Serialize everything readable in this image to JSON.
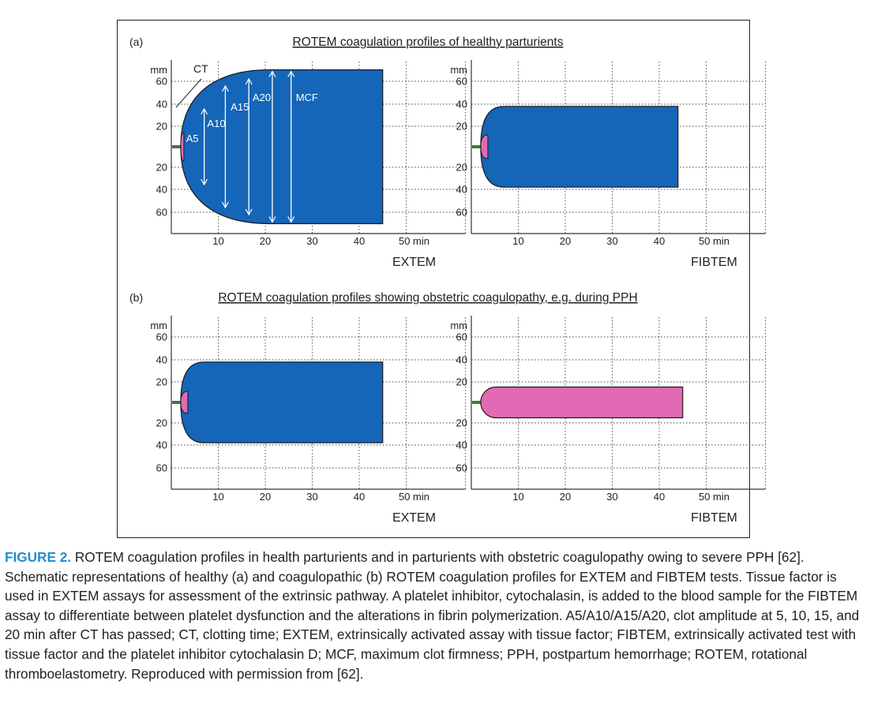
{
  "figure": {
    "panels": [
      {
        "label": "(a)",
        "title": "ROTEM coagulation profiles of healthy parturients",
        "charts": [
          {
            "assay": "EXTEM",
            "y_unit": "mm",
            "x_unit": "min",
            "y_ticks_upper": [
              "60",
              "40",
              "20"
            ],
            "y_ticks_lower": [
              "20",
              "40",
              "60"
            ],
            "x_ticks": [
              "10",
              "20",
              "30",
              "40",
              "50"
            ],
            "annotations": {
              "ct": "CT",
              "a5": "A5",
              "a10": "A10",
              "a15": "A15",
              "a20": "A20",
              "mcf": "MCF"
            }
          },
          {
            "assay": "FIBTEM",
            "y_unit": "mm",
            "x_unit": "min",
            "y_ticks_upper": [
              "60",
              "40",
              "20"
            ],
            "y_ticks_lower": [
              "20",
              "40",
              "60"
            ],
            "x_ticks": [
              "10",
              "20",
              "30",
              "40",
              "50"
            ]
          }
        ]
      },
      {
        "label": "(b)",
        "title": "ROTEM coagulation profiles showing obstetric coagulopathy, e.g. during PPH",
        "charts": [
          {
            "assay": "EXTEM",
            "y_unit": "mm",
            "x_unit": "min",
            "y_ticks_upper": [
              "60",
              "40",
              "20"
            ],
            "y_ticks_lower": [
              "20",
              "40",
              "60"
            ],
            "x_ticks": [
              "10",
              "20",
              "30",
              "40",
              "50"
            ]
          },
          {
            "assay": "FIBTEM",
            "y_unit": "mm",
            "x_unit": "min",
            "y_ticks_upper": [
              "60",
              "40",
              "20"
            ],
            "y_ticks_lower": [
              "20",
              "40",
              "60"
            ],
            "x_ticks": [
              "10",
              "20",
              "30",
              "40",
              "50"
            ]
          }
        ]
      }
    ]
  },
  "colors": {
    "clot": "#1565b8",
    "initiation": "#e26ab4",
    "baseline": "#3f7a3a"
  },
  "chart_data": [
    {
      "type": "area",
      "panel": "(a)",
      "assay": "EXTEM",
      "ct_min": 2,
      "mcf_mm": 70,
      "end_min": 45,
      "clot_color": "blue",
      "amplitude_labels": {
        "A5": 5,
        "A10": 10,
        "A15": 15,
        "A20": 20
      }
    },
    {
      "type": "area",
      "panel": "(a)",
      "assay": "FIBTEM",
      "ct_min": 2,
      "mcf_mm": 38,
      "end_min": 44,
      "clot_color": "blue"
    },
    {
      "type": "area",
      "panel": "(b)",
      "assay": "EXTEM",
      "ct_min": 2,
      "mcf_mm": 38,
      "end_min": 45,
      "clot_color": "blue"
    },
    {
      "type": "area",
      "panel": "(b)",
      "assay": "FIBTEM",
      "ct_min": 2,
      "mcf_mm": 15,
      "end_min": 45,
      "clot_color": "pink"
    }
  ],
  "caption": {
    "label": "FIGURE 2.",
    "text": " ROTEM coagulation profiles in health parturients and in parturients with obstetric coagulopathy owing to severe PPH [62]. Schematic representations of healthy (a) and coagulopathic (b) ROTEM coagulation profiles for EXTEM and FIBTEM tests. Tissue factor is used in EXTEM assays for assessment of the extrinsic pathway. A platelet inhibitor, cytochalasin, is added to the blood sample for the FIBTEM assay to differentiate between platelet dysfunction and the alterations in fibrin polymerization. A5/A10/A15/A20, clot amplitude at 5, 10, 15, and 20 min after CT has passed; CT, clotting time; EXTEM, extrinsically activated assay with tissue factor; FIBTEM, extrinsically activated test with tissue factor and the platelet inhibitor cytochalasin D; MCF, maximum clot firmness; PPH, postpartum hemorrhage; ROTEM, rotational thromboelastometry. Reproduced with permission from [62]."
  }
}
